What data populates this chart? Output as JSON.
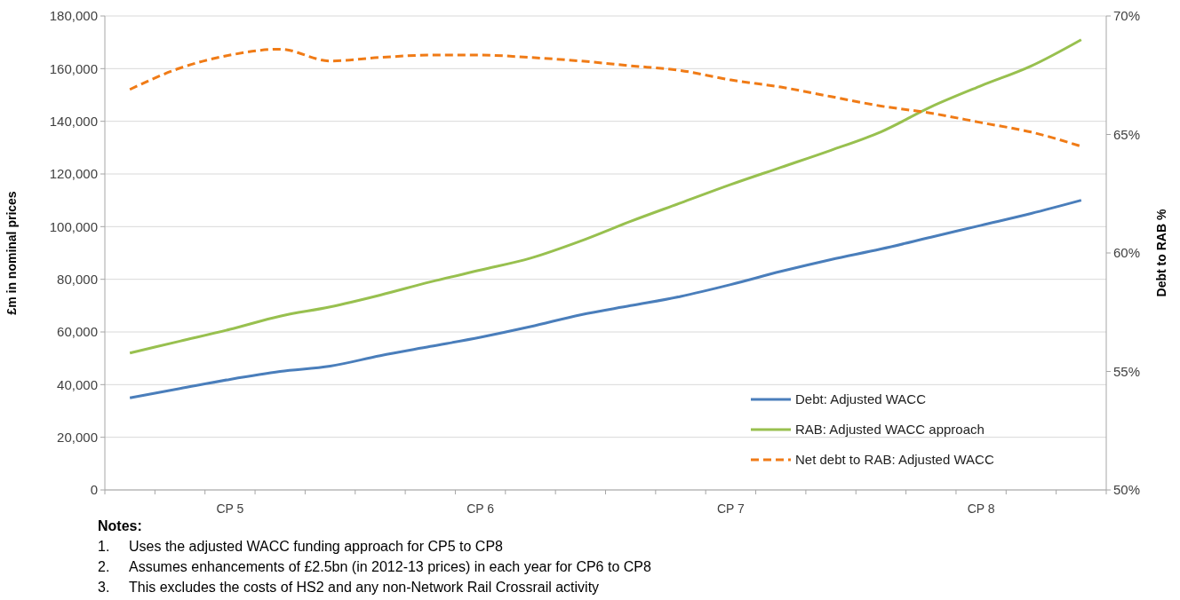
{
  "chart_data": {
    "type": "line",
    "ylabel": "£m in nominal prices",
    "y2label": "Debt to RAB %",
    "categories": [
      null,
      null,
      "CP 5",
      null,
      null,
      null,
      null,
      "CP 6",
      null,
      null,
      null,
      null,
      "CP 7",
      null,
      null,
      null,
      null,
      "CP 8",
      null,
      null
    ],
    "series": [
      {
        "name": "Debt: Adjusted WACC",
        "color": "#4a7ebb",
        "line_style": "solid",
        "values": [
          35000,
          38500,
          42000,
          45000,
          47000,
          51000,
          54500,
          58000,
          62000,
          66500,
          70000,
          73500,
          78000,
          83000,
          87500,
          91500,
          96000,
          100500,
          105000,
          110000
        ]
      },
      {
        "name": "RAB: Adjusted WACC approach",
        "color": "#98c04f",
        "line_style": "solid",
        "values": [
          52000,
          56500,
          61000,
          66000,
          69500,
          74000,
          79000,
          83500,
          88000,
          94500,
          102000,
          109000,
          116000,
          122500,
          129000,
          136000,
          145500,
          153500,
          161000,
          171000
        ]
      },
      {
        "name": "Net debt to RAB: Adjusted WACC",
        "color": "#f07b16",
        "line_style": "dashed",
        "axis": "y2",
        "values": [
          66.9,
          67.8,
          68.35,
          68.6,
          68.1,
          68.25,
          68.35,
          68.35,
          68.25,
          68.1,
          67.9,
          67.7,
          67.3,
          67.0,
          66.6,
          66.2,
          65.9,
          65.5,
          65.1,
          64.5
        ]
      }
    ],
    "ylim": [
      0,
      180000
    ],
    "yticks": [
      {
        "value": 0,
        "label": "0"
      },
      {
        "value": 20000,
        "label": "20,000"
      },
      {
        "value": 40000,
        "label": "40,000"
      },
      {
        "value": 60000,
        "label": "60,000"
      },
      {
        "value": 80000,
        "label": "80,000"
      },
      {
        "value": 100000,
        "label": "100,000"
      },
      {
        "value": 120000,
        "label": "120,000"
      },
      {
        "value": 140000,
        "label": "140,000"
      },
      {
        "value": 160000,
        "label": "160,000"
      },
      {
        "value": 180000,
        "label": "180,000"
      }
    ],
    "y2lim": [
      50,
      70
    ],
    "y2ticks": [
      {
        "value": 50,
        "label": "50%"
      },
      {
        "value": 55,
        "label": "55%"
      },
      {
        "value": 60,
        "label": "60%"
      },
      {
        "value": 65,
        "label": "65%"
      },
      {
        "value": 70,
        "label": "70%"
      }
    ],
    "grid": "y",
    "legend": "bottom right",
    "marker": "none",
    "annotations": [
      "Notes:",
      "1.\tUses the adjusted WACC funding approach for CP5 to CP8",
      "2.\tAssumes enhancements of £2.5bn (in 2012-13 prices) in each year for CP6 to CP8",
      "3.\tThis excludes the costs of HS2 and any non-Network Rail Crossrail activity"
    ]
  }
}
